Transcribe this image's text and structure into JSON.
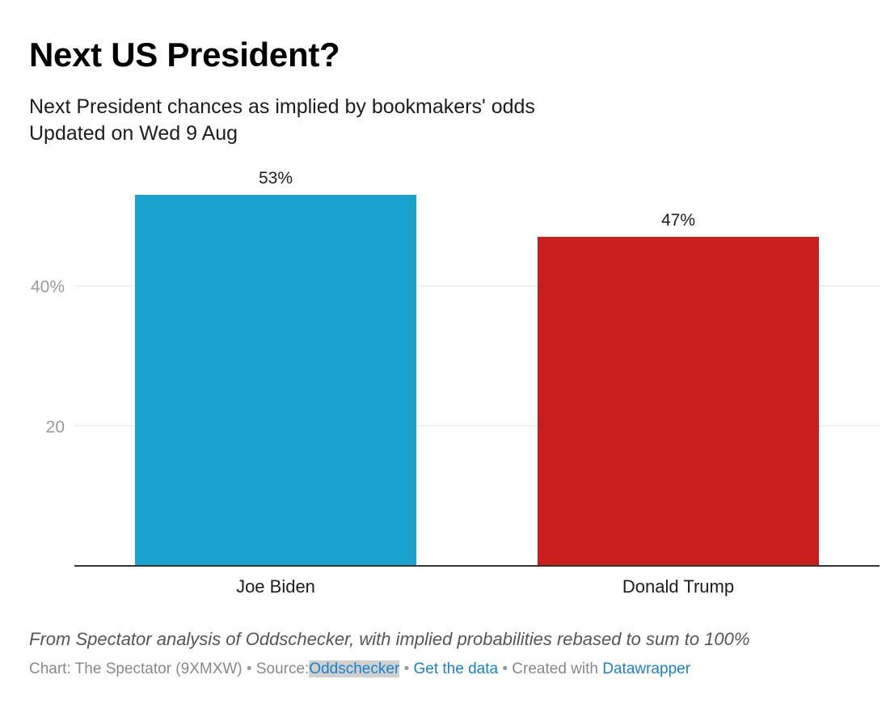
{
  "header": {
    "title": "Next US President?",
    "subtitle_line1": "Next President chances as implied by bookmakers' odds",
    "subtitle_line2": "Updated on Wed 9 Aug"
  },
  "chart_data": {
    "type": "bar",
    "categories": [
      "Joe Biden",
      "Donald Trump"
    ],
    "values": [
      53,
      47
    ],
    "value_labels": [
      "53%",
      "47%"
    ],
    "colors": [
      "#1aa1ce",
      "#c91e1e"
    ],
    "yticks": [
      {
        "value": 20,
        "label": "20"
      },
      {
        "value": 40,
        "label": "40%"
      }
    ],
    "ylim": [
      0,
      53
    ],
    "grid": true,
    "axis_color": "#333333",
    "grid_color": "#e5e5e5"
  },
  "footer": {
    "note": "From Spectator analysis of Oddschecker, with implied probabilities rebased to sum to 100%",
    "chart_prefix": "Chart: The Spectator (9XMXW)",
    "bullet": "•",
    "source_prefix": "Source:",
    "source_link": "Oddschecker",
    "get_data": "Get the data",
    "created_with": "Created with",
    "datawrapper": "Datawrapper"
  }
}
